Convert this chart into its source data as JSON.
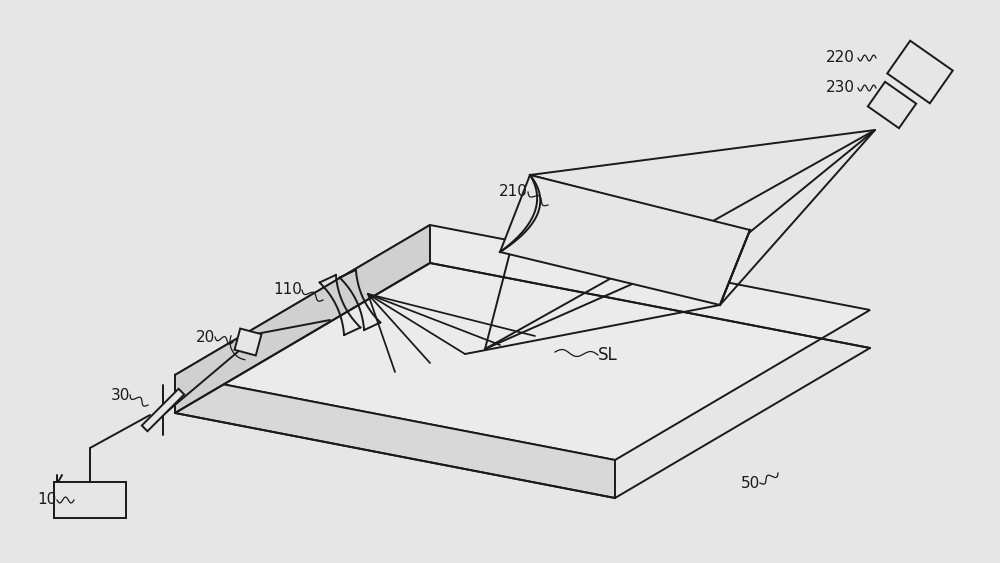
{
  "bg_color": "#e6e6e6",
  "line_color": "#1a1a1a",
  "lw": 1.4,
  "bg_fill": "#e6e6e6",
  "plate_top_fill": "#ebebeb",
  "plate_side_fill": "#d0d0d0",
  "plate_front_fill": "#d8d8d8"
}
